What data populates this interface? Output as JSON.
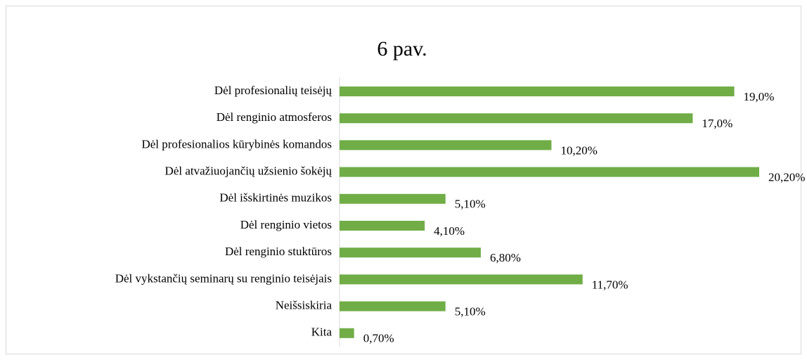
{
  "chart_data": {
    "type": "barh",
    "title": "6 pav.",
    "categories": [
      "Dėl profesionalių teisėjų",
      "Dėl renginio atmosferos",
      "Dėl profesionalios kūrybinės komandos",
      "Dėl atvažiuojančių užsienio šokėjų",
      "Dėl išskirtinės muzikos",
      "Dėl renginio vietos",
      "Dėl renginio stuktūros",
      "Dėl vykstančių seminarų su renginio teisėjais",
      "Neišsiskiria",
      "Kita"
    ],
    "values": [
      19.0,
      17.0,
      10.2,
      20.2,
      5.1,
      4.1,
      6.8,
      11.7,
      5.1,
      0.7
    ],
    "value_labels": [
      "19,0%",
      "17,0%",
      "10,20%",
      "20,20%",
      "5,10%",
      "4,10%",
      "6,80%",
      "11,70%",
      "5,10%",
      "0,70%"
    ],
    "color": "#70ad47"
  }
}
